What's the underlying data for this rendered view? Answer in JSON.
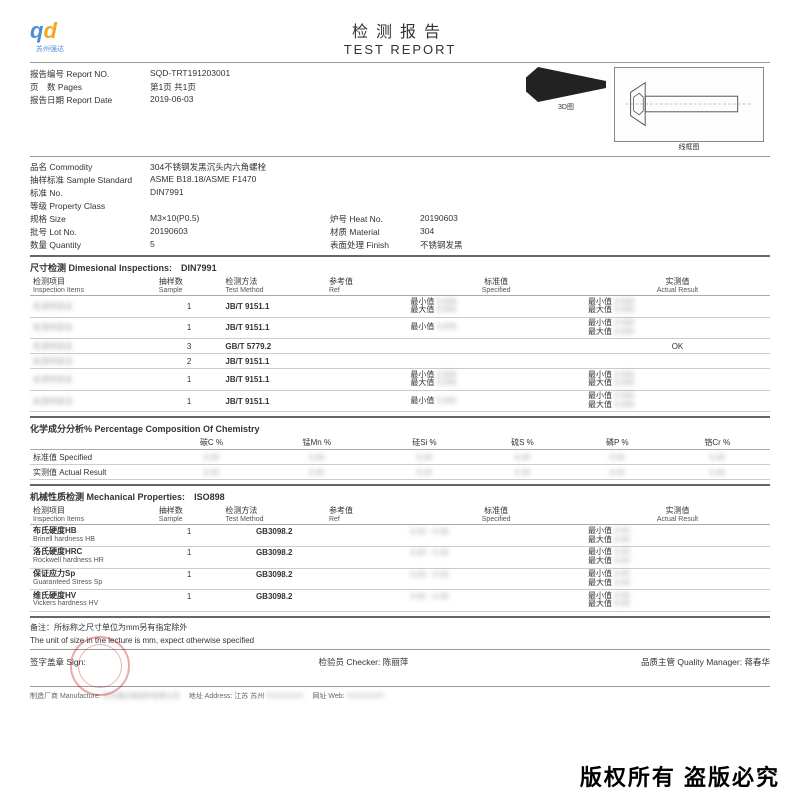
{
  "colors": {
    "logo_blue": "#4a90d9",
    "logo_orange": "#f5a623",
    "rule": "#999999",
    "rule_bold": "#666666",
    "stamp": "#c81e1e"
  },
  "logo": {
    "letters": "qd",
    "text": "苏州强达"
  },
  "title": {
    "cn": "检测报告",
    "en": "TEST REPORT"
  },
  "meta": {
    "report_no_label": "报告编号 Report NO.",
    "report_no": "SQD-TRT191203001",
    "pages_label": "页　数 Pages",
    "pages": "第1页 共1页",
    "date_label": "报告日期 Report Date",
    "date": "2019-06-03"
  },
  "images": {
    "left_caption": "3D图",
    "right_caption": "线框图"
  },
  "commodity": {
    "name_label": "品名 Commodity",
    "name": "304不锈钢发黑沉头内六角螺栓",
    "std_label": "抽样标准 Sample Standard",
    "std": "ASME B18.18/ASME F1470",
    "no_label": "标准 No.",
    "no": "DIN7991",
    "class_label": "等级 Property Class",
    "class": "",
    "size_label": "规格 Size",
    "size": "M3×10(P0.5)",
    "heat_label": "炉号 Heat No.",
    "heat": "20190603",
    "lot_label": "批号 Lot No.",
    "lot": "20190603",
    "mat_label": "材质 Material",
    "mat": "304",
    "qty_label": "数量 Quantity",
    "qty": "5",
    "finish_label": "表面处理 Finish",
    "finish": "不锈钢发黑"
  },
  "dim": {
    "title": "尺寸检测 Dimesional Inspections:",
    "spec": "DIN7991",
    "headers": {
      "item_cn": "检测项目",
      "item_en": "Inspection Items",
      "sample_cn": "抽样数",
      "sample_en": "Sample",
      "method_cn": "检测方法",
      "method_en": "Test Method",
      "ref_cn": "参考值",
      "ref_en": "Ref",
      "spec_cn": "标准值",
      "spec_en": "Specified",
      "res_cn": "实测值",
      "res_en": "Actual Result"
    },
    "min_label": "最小值",
    "max_label": "最大值",
    "rows": [
      {
        "sample": "1",
        "method": "JB/T 9151.1",
        "spec_min": true,
        "spec_max": true,
        "res_min": true,
        "res_max": true
      },
      {
        "sample": "1",
        "method": "JB/T 9151.1",
        "spec_min": true,
        "spec_max": false,
        "res_min": true,
        "res_max": true
      },
      {
        "sample": "3",
        "method": "GB/T 5779.2",
        "spec_min": false,
        "spec_max": false,
        "res_text": "OK"
      },
      {
        "sample": "2",
        "method": "JB/T 9151.1",
        "spec_min": false,
        "spec_max": false
      },
      {
        "sample": "1",
        "method": "JB/T 9151.1",
        "spec_min": true,
        "spec_max": true,
        "res_min": true,
        "res_max": true
      },
      {
        "sample": "1",
        "method": "JB/T 9151.1",
        "spec_min": true,
        "spec_max": false,
        "res_min": true,
        "res_max": true
      }
    ]
  },
  "chem": {
    "title": "化学成分分析% Percentage Composition Of Chemistry",
    "cols": [
      "碳C %",
      "锰Mn %",
      "硅Si %",
      "硫S %",
      "磷P %",
      "铬Cr %"
    ],
    "row1_label": "标准值 Specified",
    "row2_label": "实测值 Actual Result"
  },
  "mech": {
    "title": "机械性质检测 Mechanical Properties:",
    "spec": "ISO898",
    "headers": {
      "item_cn": "检测项目",
      "item_en": "Inspection Items",
      "sample_cn": "抽样数",
      "sample_en": "Sample",
      "method_cn": "检测方法",
      "method_en": "Test Method",
      "ref_cn": "参考值",
      "ref_en": "Ref",
      "spec_cn": "标准值",
      "spec_en": "Specified",
      "res_cn": "实测值",
      "res_en": "Actual Result"
    },
    "min_label": "最小值",
    "max_label": "最大值",
    "rows": [
      {
        "item_cn": "布氏硬度HB",
        "item_en": "Brinell hardness HB",
        "sample": "1",
        "method": "GB3098.2"
      },
      {
        "item_cn": "洛氏硬度HRC",
        "item_en": "Rockwell hardness HR",
        "sample": "1",
        "method": "GB3098.2"
      },
      {
        "item_cn": "保证应力Sp",
        "item_en": "Guaranteed Stress Sp",
        "sample": "1",
        "method": "GB3098.2"
      },
      {
        "item_cn": "维氏硬度HV",
        "item_en": "Vickers hardness HV",
        "sample": "1",
        "method": "GB3098.2"
      }
    ]
  },
  "note": {
    "cn": "备注：所标称之尺寸单位为mm另有指定除外",
    "en": "The unit of size in the lecture is mm, expect otherwise specified"
  },
  "sign": {
    "sign_label": "签字盖章 Sign:",
    "checker_label": "检验员 Checker:",
    "checker": "陈丽萍",
    "qm_label": "品质主管 Quality Manager:",
    "qm": "蒋春华"
  },
  "maker": {
    "mfg_label": "制造厂商 Manufacture:",
    "addr_label": "地址 Address:",
    "addr": "江苏 苏州",
    "web_label": "网址 Web:"
  },
  "copyright": "版权所有 盗版必究"
}
